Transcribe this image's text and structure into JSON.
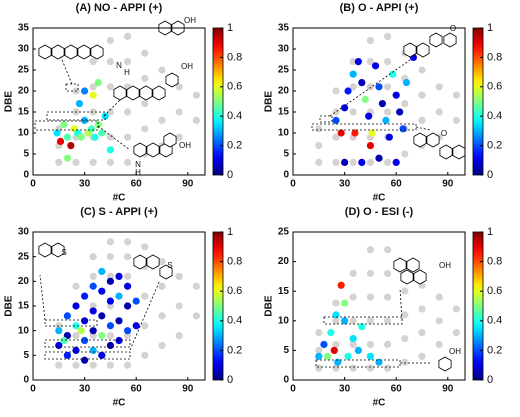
{
  "chart_data": [
    {
      "type": "scatter",
      "title": "(A) NO - APPI (+)",
      "xlabel": "#C",
      "ylabel": "DBE",
      "xlim": [
        0,
        100
      ],
      "xticks": [
        0,
        30,
        60,
        90
      ],
      "ylim": [
        0,
        35
      ],
      "yticks": [
        0,
        5,
        10,
        15,
        20,
        25,
        30,
        35
      ],
      "colormap": "jet",
      "clim": [
        0,
        1
      ],
      "cticks": [
        0,
        0.2,
        0.4,
        0.6,
        0.8,
        1
      ],
      "background_color": "#d6d2cd",
      "background": {
        "x": [
          15,
          15,
          15,
          25,
          25,
          25,
          25,
          35,
          35,
          35,
          35,
          35,
          45,
          45,
          45,
          45,
          45,
          45,
          55,
          55,
          55,
          55,
          55,
          55,
          65,
          65,
          65,
          65,
          65,
          75,
          75,
          75,
          75,
          85,
          85,
          85,
          95,
          95
        ],
        "y": [
          3,
          7,
          11,
          3,
          9,
          15,
          20,
          3,
          9,
          15,
          21,
          27,
          3,
          9,
          15,
          21,
          27,
          32,
          3,
          9,
          15,
          21,
          27,
          33,
          5,
          11,
          17,
          23,
          29,
          7,
          13,
          19,
          25,
          9,
          15,
          21,
          13,
          19
        ]
      },
      "points": {
        "x": [
          14,
          16,
          18,
          20,
          22,
          24,
          26,
          28,
          30,
          32,
          34,
          36,
          38,
          40,
          27,
          30,
          35,
          38,
          45,
          20,
          42
        ],
        "y": [
          10,
          8,
          12,
          9,
          7,
          11,
          10,
          9,
          13,
          10,
          11,
          9,
          12,
          10,
          17,
          20,
          19,
          22,
          6,
          4,
          14
        ],
        "values": [
          0.35,
          0.9,
          0.5,
          0.45,
          0.95,
          0.6,
          0.4,
          0.5,
          0.3,
          0.55,
          0.45,
          0.4,
          0.5,
          0.45,
          0.3,
          0.25,
          0.6,
          0.5,
          0.4,
          0.5,
          0.35
        ]
      },
      "annotations": [
        "OH",
        "N",
        "H",
        "OH",
        "OH",
        "N",
        "H"
      ]
    },
    {
      "type": "scatter",
      "title": "(B) O - APPI (+)",
      "xlabel": "#C",
      "ylabel": "DBE",
      "xlim": [
        0,
        100
      ],
      "xticks": [
        0,
        30,
        60,
        90
      ],
      "ylim": [
        0,
        35
      ],
      "yticks": [
        0,
        5,
        10,
        15,
        20,
        25,
        30,
        35
      ],
      "colormap": "jet",
      "clim": [
        0,
        1
      ],
      "cticks": [
        0,
        0.2,
        0.4,
        0.6,
        0.8,
        1
      ],
      "background_color": "#d6d2cd",
      "background": {
        "x": [
          15,
          15,
          15,
          25,
          25,
          25,
          25,
          35,
          35,
          35,
          35,
          35,
          45,
          45,
          45,
          45,
          45,
          45,
          55,
          55,
          55,
          55,
          55,
          55,
          65,
          65,
          65,
          65,
          65,
          75,
          75,
          75,
          75,
          85,
          85,
          85,
          95,
          95
        ],
        "y": [
          3,
          7,
          11,
          3,
          9,
          15,
          20,
          3,
          9,
          15,
          21,
          27,
          3,
          9,
          15,
          21,
          27,
          32,
          3,
          9,
          15,
          21,
          27,
          33,
          5,
          11,
          17,
          23,
          29,
          7,
          13,
          19,
          25,
          9,
          15,
          21,
          13,
          19
        ]
      },
      "points": {
        "x": [
          25,
          28,
          30,
          32,
          35,
          38,
          40,
          42,
          44,
          46,
          48,
          50,
          52,
          54,
          56,
          58,
          60,
          62,
          64,
          30,
          40,
          50,
          60,
          66,
          70,
          36,
          45
        ],
        "y": [
          13,
          10,
          16,
          20,
          24,
          27,
          22,
          18,
          14,
          10,
          26,
          21,
          17,
          13,
          9,
          24,
          19,
          15,
          11,
          3,
          3,
          4,
          3,
          22,
          28,
          10,
          7
        ],
        "values": [
          0.2,
          0.9,
          0.1,
          0.15,
          0.3,
          0.1,
          0.05,
          0.5,
          0.1,
          0.6,
          0.1,
          0.2,
          0.05,
          0.3,
          0.1,
          0.4,
          0.1,
          0.05,
          0.2,
          0.05,
          0.1,
          0.05,
          0.1,
          0.3,
          0.1,
          0.85,
          0.9
        ]
      },
      "annotations": [
        "O",
        "O"
      ]
    },
    {
      "type": "scatter",
      "title": "(C) S - APPI (+)",
      "xlabel": "#C",
      "ylabel": "DBE",
      "xlim": [
        0,
        100
      ],
      "xticks": [
        0,
        30,
        60,
        90
      ],
      "ylim": [
        0,
        30
      ],
      "yticks": [
        0,
        5,
        10,
        15,
        20,
        25,
        30
      ],
      "colormap": "jet",
      "clim": [
        0,
        1
      ],
      "cticks": [
        0,
        0.2,
        0.4,
        0.6,
        0.8,
        1
      ],
      "background_color": "#d6d2cd",
      "background": {
        "x": [
          15,
          15,
          15,
          25,
          25,
          25,
          25,
          35,
          35,
          35,
          35,
          35,
          45,
          45,
          45,
          45,
          45,
          45,
          55,
          55,
          55,
          55,
          55,
          55,
          65,
          65,
          65,
          65,
          65,
          75,
          75,
          75,
          75,
          85,
          85,
          85,
          95,
          95
        ],
        "y": [
          3,
          7,
          11,
          3,
          9,
          15,
          19,
          3,
          9,
          15,
          21,
          25,
          3,
          9,
          15,
          21,
          25,
          28,
          3,
          9,
          15,
          21,
          25,
          28,
          5,
          11,
          17,
          23,
          27,
          7,
          13,
          19,
          24,
          9,
          15,
          21,
          13,
          19
        ]
      },
      "points": {
        "x": [
          15,
          15,
          20,
          20,
          20,
          25,
          25,
          25,
          30,
          30,
          30,
          30,
          35,
          35,
          35,
          35,
          40,
          40,
          40,
          40,
          40,
          45,
          45,
          45,
          45,
          50,
          50,
          50,
          50,
          55,
          55,
          55,
          60,
          60,
          18,
          28
        ],
        "y": [
          7,
          10,
          5,
          9,
          13,
          6,
          11,
          15,
          4,
          8,
          12,
          17,
          6,
          10,
          14,
          19,
          5,
          9,
          13,
          18,
          22,
          7,
          11,
          16,
          20,
          8,
          12,
          17,
          21,
          10,
          15,
          19,
          11,
          16,
          8,
          10
        ],
        "values": [
          0.1,
          0.3,
          0.15,
          0.05,
          0.2,
          0.1,
          0.4,
          0.1,
          0.05,
          0.2,
          0.1,
          0.15,
          0.3,
          0.05,
          0.1,
          0.2,
          0.1,
          0.5,
          0.05,
          0.1,
          0.3,
          0.05,
          0.2,
          0.1,
          0.05,
          0.1,
          0.05,
          0.3,
          0.1,
          0.2,
          0.05,
          0.1,
          0.1,
          0.2,
          0.45,
          0.55
        ]
      },
      "annotations": [
        "S",
        "S"
      ]
    },
    {
      "type": "scatter",
      "title": "(D) O - ESI (-)",
      "xlabel": "#C",
      "ylabel": "DBE",
      "xlim": [
        0,
        100
      ],
      "xticks": [
        0,
        30,
        60,
        90
      ],
      "ylim": [
        0,
        25
      ],
      "yticks": [
        0,
        5,
        10,
        15,
        20,
        25
      ],
      "colormap": "jet",
      "clim": [
        0,
        1
      ],
      "cticks": [
        0,
        0.2,
        0.4,
        0.6,
        0.8,
        1
      ],
      "background_color": "#d6d2cd",
      "background": {
        "x": [
          15,
          15,
          15,
          25,
          25,
          25,
          25,
          35,
          35,
          35,
          35,
          35,
          45,
          45,
          45,
          45,
          45,
          45,
          55,
          55,
          55,
          55,
          55,
          55,
          65,
          65,
          65,
          65,
          65,
          75,
          75,
          75,
          75,
          85,
          85,
          85,
          95,
          95
        ],
        "y": [
          2,
          5,
          8,
          2,
          6,
          10,
          13,
          2,
          6,
          10,
          14,
          18,
          2,
          6,
          10,
          14,
          18,
          22,
          2,
          6,
          10,
          14,
          18,
          22,
          3,
          7,
          11,
          15,
          19,
          4,
          8,
          12,
          16,
          6,
          10,
          14,
          8,
          12
        ]
      },
      "points": {
        "x": [
          15,
          18,
          20,
          22,
          24,
          26,
          28,
          30,
          32,
          35,
          38,
          40,
          45,
          50,
          30,
          25
        ],
        "y": [
          4,
          6,
          4,
          8,
          5,
          3,
          16,
          10,
          4,
          7,
          5,
          9,
          4,
          3,
          13,
          11
        ],
        "values": [
          0.3,
          0.2,
          0.5,
          0.4,
          0.9,
          0.3,
          0.85,
          0.3,
          0.4,
          0.35,
          0.3,
          0.4,
          0.35,
          0.3,
          0.5,
          0.35
        ]
      },
      "annotations": [
        "OH",
        "OH"
      ]
    }
  ]
}
